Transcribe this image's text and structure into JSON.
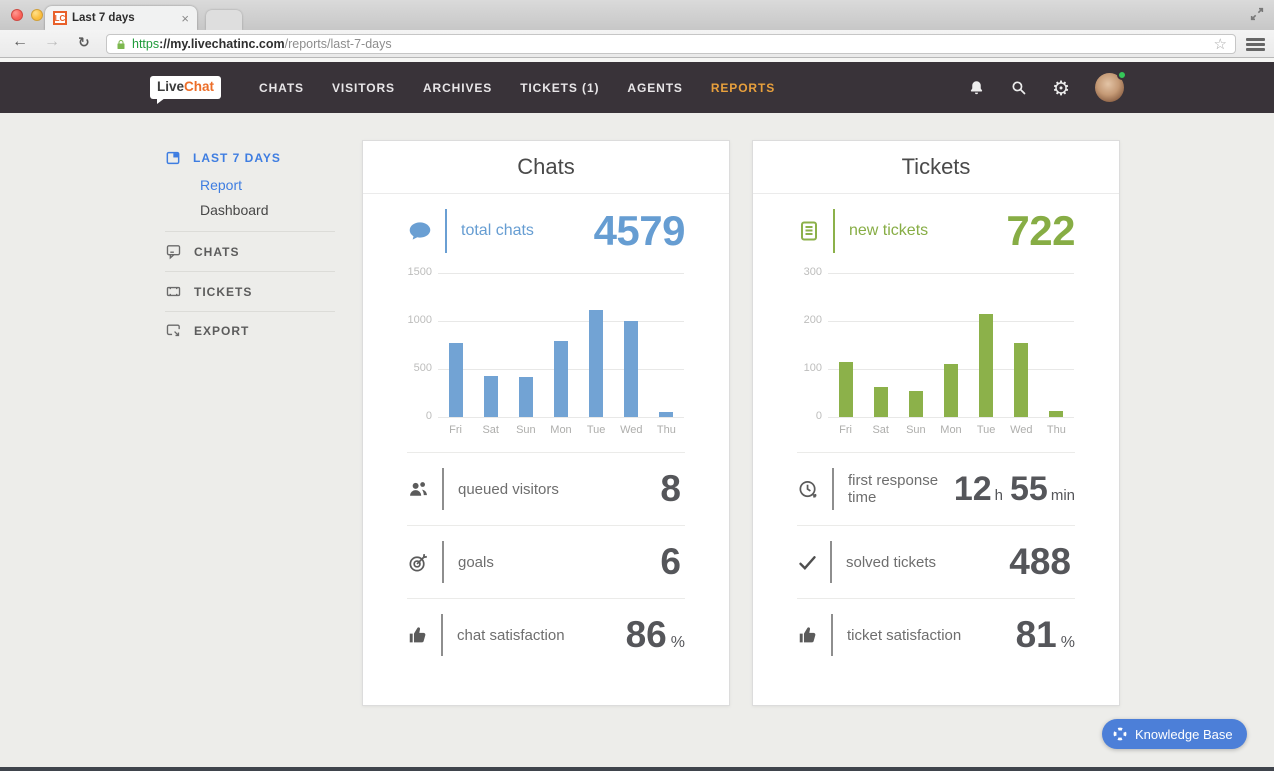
{
  "browser": {
    "tab": {
      "favicon": "LC",
      "title": "Last 7 days",
      "close": "×"
    },
    "back": "←",
    "forward": "→",
    "reload": "↻",
    "star": "☆",
    "url": {
      "scheme": "https",
      "sep": "://",
      "domain": "my.livechatinc.com",
      "path": "/reports/last-7-days"
    }
  },
  "navbar": {
    "logo_live": "Live",
    "logo_chat": "Chat",
    "items": [
      {
        "label": "CHATS",
        "active": false
      },
      {
        "label": "VISITORS",
        "active": false
      },
      {
        "label": "ARCHIVES",
        "active": false
      },
      {
        "label": "TICKETS (1)",
        "active": false
      },
      {
        "label": "AGENTS",
        "active": false
      },
      {
        "label": "REPORTS",
        "active": true
      }
    ]
  },
  "sidebar": {
    "group_label": "LAST 7 DAYS",
    "report": "Report",
    "dashboard": "Dashboard",
    "chats": "CHATS",
    "tickets": "TICKETS",
    "export": "EXPORT"
  },
  "chats_card": {
    "title": "Chats",
    "stat_label": "total chats",
    "stat_value": "4579",
    "metrics": [
      {
        "label": "queued visitors",
        "value": "8",
        "unit": ""
      },
      {
        "label": "goals",
        "value": "6",
        "unit": ""
      },
      {
        "label": "chat satisfaction",
        "value": "86",
        "unit": "%"
      }
    ]
  },
  "tickets_card": {
    "title": "Tickets",
    "stat_label": "new tickets",
    "stat_value": "722",
    "response_time": {
      "label": "first response time",
      "hours": "12",
      "hours_unit": "h",
      "minutes": "55",
      "minutes_unit": "min"
    },
    "metrics": [
      {
        "label": "solved tickets",
        "value": "488",
        "unit": ""
      },
      {
        "label": "ticket satisfaction",
        "value": "81",
        "unit": "%"
      }
    ]
  },
  "knowledge_base": {
    "label": "Knowledge Base"
  },
  "colors": {
    "chats_accent": "#6a9fd3",
    "tickets_accent": "#8cb14a",
    "nav_active": "#e8a03c",
    "sidebar_active": "#3e7de1",
    "navbar_bg": "#393339",
    "value_text": "#55565a"
  },
  "chart_data": [
    {
      "type": "bar",
      "title": "Chats per day (last 7 days)",
      "categories": [
        "Fri",
        "Sat",
        "Sun",
        "Mon",
        "Tue",
        "Wed",
        "Thu"
      ],
      "values": [
        775,
        430,
        415,
        795,
        1110,
        1000,
        54
      ],
      "xlabel": "",
      "ylabel": "",
      "ylim": [
        0,
        1500
      ],
      "yticks": [
        0,
        500,
        1000,
        1500
      ],
      "bar_color": "#72a3d4",
      "grid": true,
      "legend": false
    },
    {
      "type": "bar",
      "title": "New tickets per day (last 7 days)",
      "categories": [
        "Fri",
        "Sat",
        "Sun",
        "Mon",
        "Tue",
        "Wed",
        "Thu"
      ],
      "values": [
        114,
        63,
        54,
        110,
        214,
        155,
        12
      ],
      "xlabel": "",
      "ylabel": "",
      "ylim": [
        0,
        300
      ],
      "yticks": [
        0,
        100,
        200,
        300
      ],
      "bar_color": "#8cb14a",
      "grid": true,
      "legend": false
    }
  ]
}
